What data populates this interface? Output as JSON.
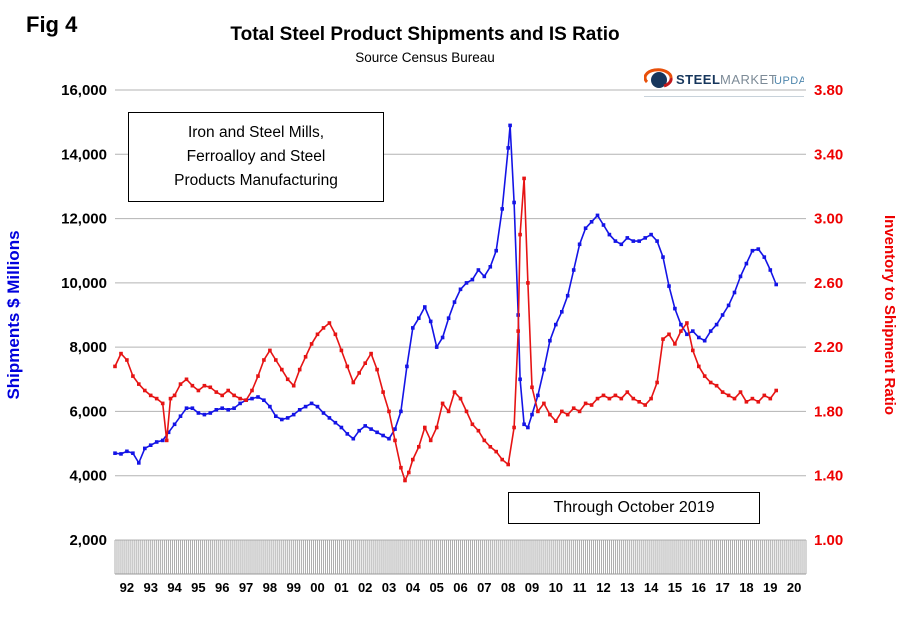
{
  "fig_label": "Fig 4",
  "title": "Total Steel Product Shipments and IS Ratio",
  "subtitle": "Source Census Bureau",
  "logo": {
    "steel": "STEEL",
    "market": "MARKET",
    "update": "UPDATE"
  },
  "annotation_box": {
    "lines": [
      "Iron and Steel Mills,",
      "Ferroalloy and Steel",
      "Products Manufacturing"
    ]
  },
  "through_box_label": "Through October 2019",
  "chart_data": {
    "type": "line",
    "dual_axis": true,
    "title": "Total Steel Product Shipments and IS Ratio",
    "subtitle": "Source Census Bureau",
    "grid": "horizontal",
    "legend": "none",
    "xlim": [
      1992,
      2021
    ],
    "x_labels": [
      "92",
      "93",
      "94",
      "95",
      "96",
      "97",
      "98",
      "99",
      "00",
      "01",
      "02",
      "03",
      "04",
      "05",
      "06",
      "07",
      "08",
      "09",
      "10",
      "11",
      "12",
      "13",
      "14",
      "15",
      "16",
      "17",
      "18",
      "19",
      "20"
    ],
    "left_axis": {
      "label": "Shipments $ Millions",
      "color": "#0000dd",
      "lim": [
        2000,
        16000
      ],
      "tick_values": [
        2000,
        4000,
        6000,
        8000,
        10000,
        12000,
        14000,
        16000
      ],
      "tick_labels": [
        "2,000",
        "4,000",
        "6,000",
        "8,000",
        "10,000",
        "12,000",
        "14,000",
        "16,000"
      ]
    },
    "right_axis": {
      "label": "Inventory to Shipment Ratio",
      "color": "#ee0000",
      "lim": [
        1.0,
        3.8
      ],
      "tick_values": [
        1.0,
        1.4,
        1.8,
        2.2,
        2.6,
        3.0,
        3.4,
        3.8
      ],
      "tick_labels": [
        "1.00",
        "1.40",
        "1.80",
        "2.20",
        "2.60",
        "3.00",
        "3.40",
        "3.80"
      ]
    },
    "series": [
      {
        "name": "Shipments $ Millions",
        "axis": "left",
        "color": "#1414e6",
        "points": [
          [
            1992,
            4700
          ],
          [
            1992.25,
            4680
          ],
          [
            1992.5,
            4760
          ],
          [
            1992.75,
            4700
          ],
          [
            1993,
            4400
          ],
          [
            1993.25,
            4850
          ],
          [
            1993.5,
            4950
          ],
          [
            1993.75,
            5050
          ],
          [
            1994,
            5100
          ],
          [
            1994.25,
            5350
          ],
          [
            1994.5,
            5600
          ],
          [
            1994.75,
            5850
          ],
          [
            1995,
            6100
          ],
          [
            1995.25,
            6100
          ],
          [
            1995.5,
            5950
          ],
          [
            1995.75,
            5900
          ],
          [
            1996,
            5950
          ],
          [
            1996.25,
            6050
          ],
          [
            1996.5,
            6100
          ],
          [
            1996.75,
            6050
          ],
          [
            1997,
            6100
          ],
          [
            1997.25,
            6250
          ],
          [
            1997.5,
            6350
          ],
          [
            1997.75,
            6400
          ],
          [
            1998,
            6450
          ],
          [
            1998.25,
            6350
          ],
          [
            1998.5,
            6150
          ],
          [
            1998.75,
            5850
          ],
          [
            1999,
            5750
          ],
          [
            1999.25,
            5800
          ],
          [
            1999.5,
            5900
          ],
          [
            1999.75,
            6050
          ],
          [
            2000,
            6150
          ],
          [
            2000.25,
            6250
          ],
          [
            2000.5,
            6150
          ],
          [
            2000.75,
            5950
          ],
          [
            2001,
            5800
          ],
          [
            2001.25,
            5650
          ],
          [
            2001.5,
            5500
          ],
          [
            2001.75,
            5300
          ],
          [
            2002,
            5150
          ],
          [
            2002.25,
            5400
          ],
          [
            2002.5,
            5550
          ],
          [
            2002.75,
            5450
          ],
          [
            2003,
            5350
          ],
          [
            2003.25,
            5250
          ],
          [
            2003.5,
            5150
          ],
          [
            2003.75,
            5450
          ],
          [
            2004,
            6000
          ],
          [
            2004.25,
            7400
          ],
          [
            2004.5,
            8600
          ],
          [
            2004.75,
            8900
          ],
          [
            2005,
            9250
          ],
          [
            2005.25,
            8800
          ],
          [
            2005.5,
            8000
          ],
          [
            2005.75,
            8300
          ],
          [
            2006,
            8900
          ],
          [
            2006.25,
            9400
          ],
          [
            2006.5,
            9800
          ],
          [
            2006.75,
            10000
          ],
          [
            2007,
            10100
          ],
          [
            2007.25,
            10400
          ],
          [
            2007.5,
            10200
          ],
          [
            2007.75,
            10500
          ],
          [
            2008,
            11000
          ],
          [
            2008.25,
            12300
          ],
          [
            2008.5,
            14200
          ],
          [
            2008.58,
            14900
          ],
          [
            2008.75,
            12500
          ],
          [
            2008.92,
            9000
          ],
          [
            2009,
            7000
          ],
          [
            2009.17,
            5600
          ],
          [
            2009.33,
            5500
          ],
          [
            2009.5,
            5900
          ],
          [
            2009.75,
            6500
          ],
          [
            2010,
            7300
          ],
          [
            2010.25,
            8200
          ],
          [
            2010.5,
            8700
          ],
          [
            2010.75,
            9100
          ],
          [
            2011,
            9600
          ],
          [
            2011.25,
            10400
          ],
          [
            2011.5,
            11200
          ],
          [
            2011.75,
            11700
          ],
          [
            2012,
            11900
          ],
          [
            2012.25,
            12100
          ],
          [
            2012.5,
            11800
          ],
          [
            2012.75,
            11500
          ],
          [
            2013,
            11300
          ],
          [
            2013.25,
            11200
          ],
          [
            2013.5,
            11400
          ],
          [
            2013.75,
            11300
          ],
          [
            2014,
            11300
          ],
          [
            2014.25,
            11400
          ],
          [
            2014.5,
            11500
          ],
          [
            2014.75,
            11300
          ],
          [
            2015,
            10800
          ],
          [
            2015.25,
            9900
          ],
          [
            2015.5,
            9200
          ],
          [
            2015.75,
            8700
          ],
          [
            2016,
            8400
          ],
          [
            2016.25,
            8500
          ],
          [
            2016.5,
            8300
          ],
          [
            2016.75,
            8200
          ],
          [
            2017,
            8500
          ],
          [
            2017.25,
            8700
          ],
          [
            2017.5,
            9000
          ],
          [
            2017.75,
            9300
          ],
          [
            2018,
            9700
          ],
          [
            2018.25,
            10200
          ],
          [
            2018.5,
            10600
          ],
          [
            2018.75,
            11000
          ],
          [
            2019,
            11050
          ],
          [
            2019.25,
            10800
          ],
          [
            2019.5,
            10400
          ],
          [
            2019.75,
            9950
          ]
        ]
      },
      {
        "name": "Inventory to Shipment Ratio",
        "axis": "right",
        "color": "#e61414",
        "points": [
          [
            1992,
            2.08
          ],
          [
            1992.25,
            2.16
          ],
          [
            1992.5,
            2.12
          ],
          [
            1992.75,
            2.02
          ],
          [
            1993,
            1.97
          ],
          [
            1993.25,
            1.93
          ],
          [
            1993.5,
            1.9
          ],
          [
            1993.75,
            1.88
          ],
          [
            1994,
            1.85
          ],
          [
            1994.17,
            1.62
          ],
          [
            1994.33,
            1.88
          ],
          [
            1994.5,
            1.9
          ],
          [
            1994.75,
            1.97
          ],
          [
            1995,
            2.0
          ],
          [
            1995.25,
            1.96
          ],
          [
            1995.5,
            1.93
          ],
          [
            1995.75,
            1.96
          ],
          [
            1996,
            1.95
          ],
          [
            1996.25,
            1.92
          ],
          [
            1996.5,
            1.9
          ],
          [
            1996.75,
            1.93
          ],
          [
            1997,
            1.9
          ],
          [
            1997.25,
            1.88
          ],
          [
            1997.5,
            1.87
          ],
          [
            1997.75,
            1.93
          ],
          [
            1998,
            2.02
          ],
          [
            1998.25,
            2.12
          ],
          [
            1998.5,
            2.18
          ],
          [
            1998.75,
            2.12
          ],
          [
            1999,
            2.06
          ],
          [
            1999.25,
            2.0
          ],
          [
            1999.5,
            1.96
          ],
          [
            1999.75,
            2.06
          ],
          [
            2000,
            2.14
          ],
          [
            2000.25,
            2.22
          ],
          [
            2000.5,
            2.28
          ],
          [
            2000.75,
            2.32
          ],
          [
            2001,
            2.35
          ],
          [
            2001.25,
            2.28
          ],
          [
            2001.5,
            2.18
          ],
          [
            2001.75,
            2.08
          ],
          [
            2002,
            1.98
          ],
          [
            2002.25,
            2.04
          ],
          [
            2002.5,
            2.1
          ],
          [
            2002.75,
            2.16
          ],
          [
            2003,
            2.06
          ],
          [
            2003.25,
            1.92
          ],
          [
            2003.5,
            1.8
          ],
          [
            2003.75,
            1.62
          ],
          [
            2004,
            1.45
          ],
          [
            2004.17,
            1.37
          ],
          [
            2004.33,
            1.42
          ],
          [
            2004.5,
            1.5
          ],
          [
            2004.75,
            1.58
          ],
          [
            2005,
            1.7
          ],
          [
            2005.25,
            1.62
          ],
          [
            2005.5,
            1.7
          ],
          [
            2005.75,
            1.85
          ],
          [
            2006,
            1.8
          ],
          [
            2006.25,
            1.92
          ],
          [
            2006.5,
            1.88
          ],
          [
            2006.75,
            1.8
          ],
          [
            2007,
            1.72
          ],
          [
            2007.25,
            1.68
          ],
          [
            2007.5,
            1.62
          ],
          [
            2007.75,
            1.58
          ],
          [
            2008,
            1.55
          ],
          [
            2008.25,
            1.5
          ],
          [
            2008.5,
            1.47
          ],
          [
            2008.75,
            1.7
          ],
          [
            2008.92,
            2.3
          ],
          [
            2009,
            2.9
          ],
          [
            2009.17,
            3.25
          ],
          [
            2009.33,
            2.6
          ],
          [
            2009.5,
            1.95
          ],
          [
            2009.75,
            1.8
          ],
          [
            2010,
            1.85
          ],
          [
            2010.25,
            1.78
          ],
          [
            2010.5,
            1.74
          ],
          [
            2010.75,
            1.8
          ],
          [
            2011,
            1.78
          ],
          [
            2011.25,
            1.82
          ],
          [
            2011.5,
            1.8
          ],
          [
            2011.75,
            1.85
          ],
          [
            2012,
            1.84
          ],
          [
            2012.25,
            1.88
          ],
          [
            2012.5,
            1.9
          ],
          [
            2012.75,
            1.88
          ],
          [
            2013,
            1.9
          ],
          [
            2013.25,
            1.88
          ],
          [
            2013.5,
            1.92
          ],
          [
            2013.75,
            1.88
          ],
          [
            2014,
            1.86
          ],
          [
            2014.25,
            1.84
          ],
          [
            2014.5,
            1.88
          ],
          [
            2014.75,
            1.98
          ],
          [
            2015,
            2.25
          ],
          [
            2015.25,
            2.28
          ],
          [
            2015.5,
            2.22
          ],
          [
            2015.75,
            2.3
          ],
          [
            2016,
            2.35
          ],
          [
            2016.25,
            2.18
          ],
          [
            2016.5,
            2.08
          ],
          [
            2016.75,
            2.02
          ],
          [
            2017,
            1.98
          ],
          [
            2017.25,
            1.96
          ],
          [
            2017.5,
            1.92
          ],
          [
            2017.75,
            1.9
          ],
          [
            2018,
            1.88
          ],
          [
            2018.25,
            1.92
          ],
          [
            2018.5,
            1.86
          ],
          [
            2018.75,
            1.88
          ],
          [
            2019,
            1.86
          ],
          [
            2019.25,
            1.9
          ],
          [
            2019.5,
            1.88
          ],
          [
            2019.75,
            1.93
          ]
        ]
      }
    ]
  }
}
